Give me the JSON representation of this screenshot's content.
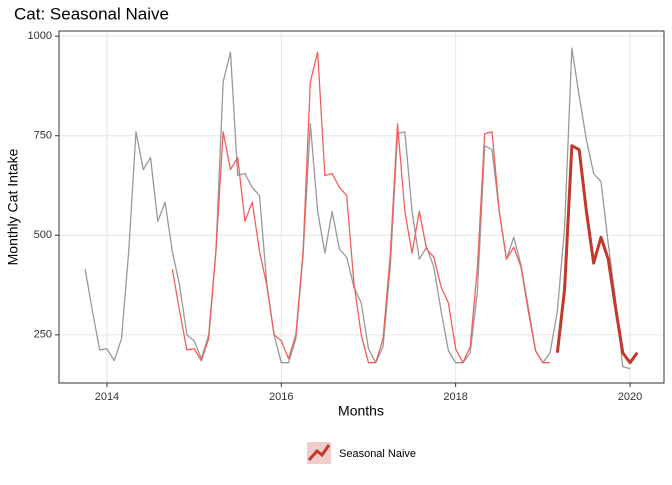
{
  "chart_data": {
    "type": "line",
    "title": "Cat: Seasonal Naive",
    "x_label": "Months",
    "y_label": "Monthly Cat Intake",
    "xlim": [
      2013.45,
      2020.39
    ],
    "xticks": [
      2014,
      2016,
      2018,
      2020
    ],
    "ylim": [
      129,
      1013
    ],
    "yticks": [
      250,
      500,
      750,
      1000
    ],
    "grid": true,
    "legend": "bottom",
    "series": [
      {
        "color": "#999999",
        "width": 1.3,
        "x": [
          2013.75,
          2013.833,
          2013.917,
          2014,
          2014.083,
          2014.167,
          2014.25,
          2014.333,
          2014.417,
          2014.5,
          2014.583,
          2014.667,
          2014.75,
          2014.833,
          2014.917,
          2015,
          2015.083,
          2015.167,
          2015.25,
          2015.333,
          2015.417,
          2015.5,
          2015.583,
          2015.667,
          2015.75,
          2015.833,
          2015.917,
          2016,
          2016.083,
          2016.167,
          2016.25,
          2016.333,
          2016.417,
          2016.5,
          2016.583,
          2016.667,
          2016.75,
          2016.833,
          2016.917,
          2017,
          2017.083,
          2017.167,
          2017.25,
          2017.333,
          2017.417,
          2017.5,
          2017.583,
          2017.667,
          2017.75,
          2017.833,
          2017.917,
          2018,
          2018.083,
          2018.167,
          2018.25,
          2018.333,
          2018.417,
          2018.5,
          2018.583,
          2018.667,
          2018.75,
          2018.833,
          2018.917,
          2019,
          2019.083,
          2019.167,
          2019.25,
          2019.333,
          2019.417,
          2019.5,
          2019.583,
          2019.667,
          2019.75,
          2019.833,
          2019.917,
          2020
        ],
        "values": [
          415,
          310,
          212,
          215,
          185,
          240,
          460,
          760,
          665,
          695,
          535,
          583,
          460,
          375,
          250,
          235,
          190,
          250,
          460,
          885,
          960,
          650,
          655,
          620,
          600,
          380,
          250,
          180,
          180,
          240,
          450,
          780,
          560,
          455,
          560,
          465,
          445,
          370,
          330,
          215,
          180,
          220,
          420,
          755,
          760,
          560,
          440,
          470,
          420,
          310,
          210,
          180,
          180,
          205,
          360,
          725,
          715,
          560,
          440,
          495,
          425,
          320,
          210,
          180,
          205,
          310,
          520,
          970,
          850,
          740,
          655,
          635,
          480,
          340,
          170,
          165
        ]
      },
      {
        "color": "#f0605a",
        "width": 1.3,
        "x": [
          2014.75,
          2014.833,
          2014.917,
          2015,
          2015.083,
          2015.167,
          2015.25,
          2015.333,
          2015.417,
          2015.5,
          2015.583,
          2015.667,
          2015.75,
          2015.833,
          2015.917,
          2016,
          2016.083,
          2016.167,
          2016.25,
          2016.333,
          2016.417,
          2016.5,
          2016.583,
          2016.667,
          2016.75,
          2016.833,
          2016.917,
          2017,
          2017.083,
          2017.167,
          2017.25,
          2017.333,
          2017.417,
          2017.5,
          2017.583,
          2017.667,
          2017.75,
          2017.833,
          2017.917,
          2018,
          2018.083,
          2018.167,
          2018.25,
          2018.333,
          2018.417,
          2018.5,
          2018.583,
          2018.667,
          2018.75,
          2018.833,
          2018.917,
          2019,
          2019.083
        ],
        "values": [
          415,
          310,
          212,
          215,
          185,
          240,
          460,
          760,
          665,
          695,
          535,
          583,
          460,
          375,
          250,
          235,
          190,
          250,
          460,
          885,
          960,
          650,
          655,
          620,
          600,
          380,
          250,
          180,
          180,
          240,
          450,
          780,
          560,
          455,
          560,
          465,
          445,
          370,
          330,
          215,
          180,
          220,
          420,
          755,
          760,
          560,
          440,
          470,
          420,
          310,
          210,
          180,
          180
        ]
      },
      {
        "name": "Seasonal Naive",
        "color": "#c0392b",
        "width": 3,
        "x": [
          2019.167,
          2019.25,
          2019.333,
          2019.417,
          2019.5,
          2019.583,
          2019.667,
          2019.75,
          2019.833,
          2019.917,
          2020,
          2020.083
        ],
        "values": [
          205,
          365,
          725,
          715,
          560,
          430,
          495,
          440,
          320,
          205,
          180,
          205
        ]
      }
    ]
  }
}
